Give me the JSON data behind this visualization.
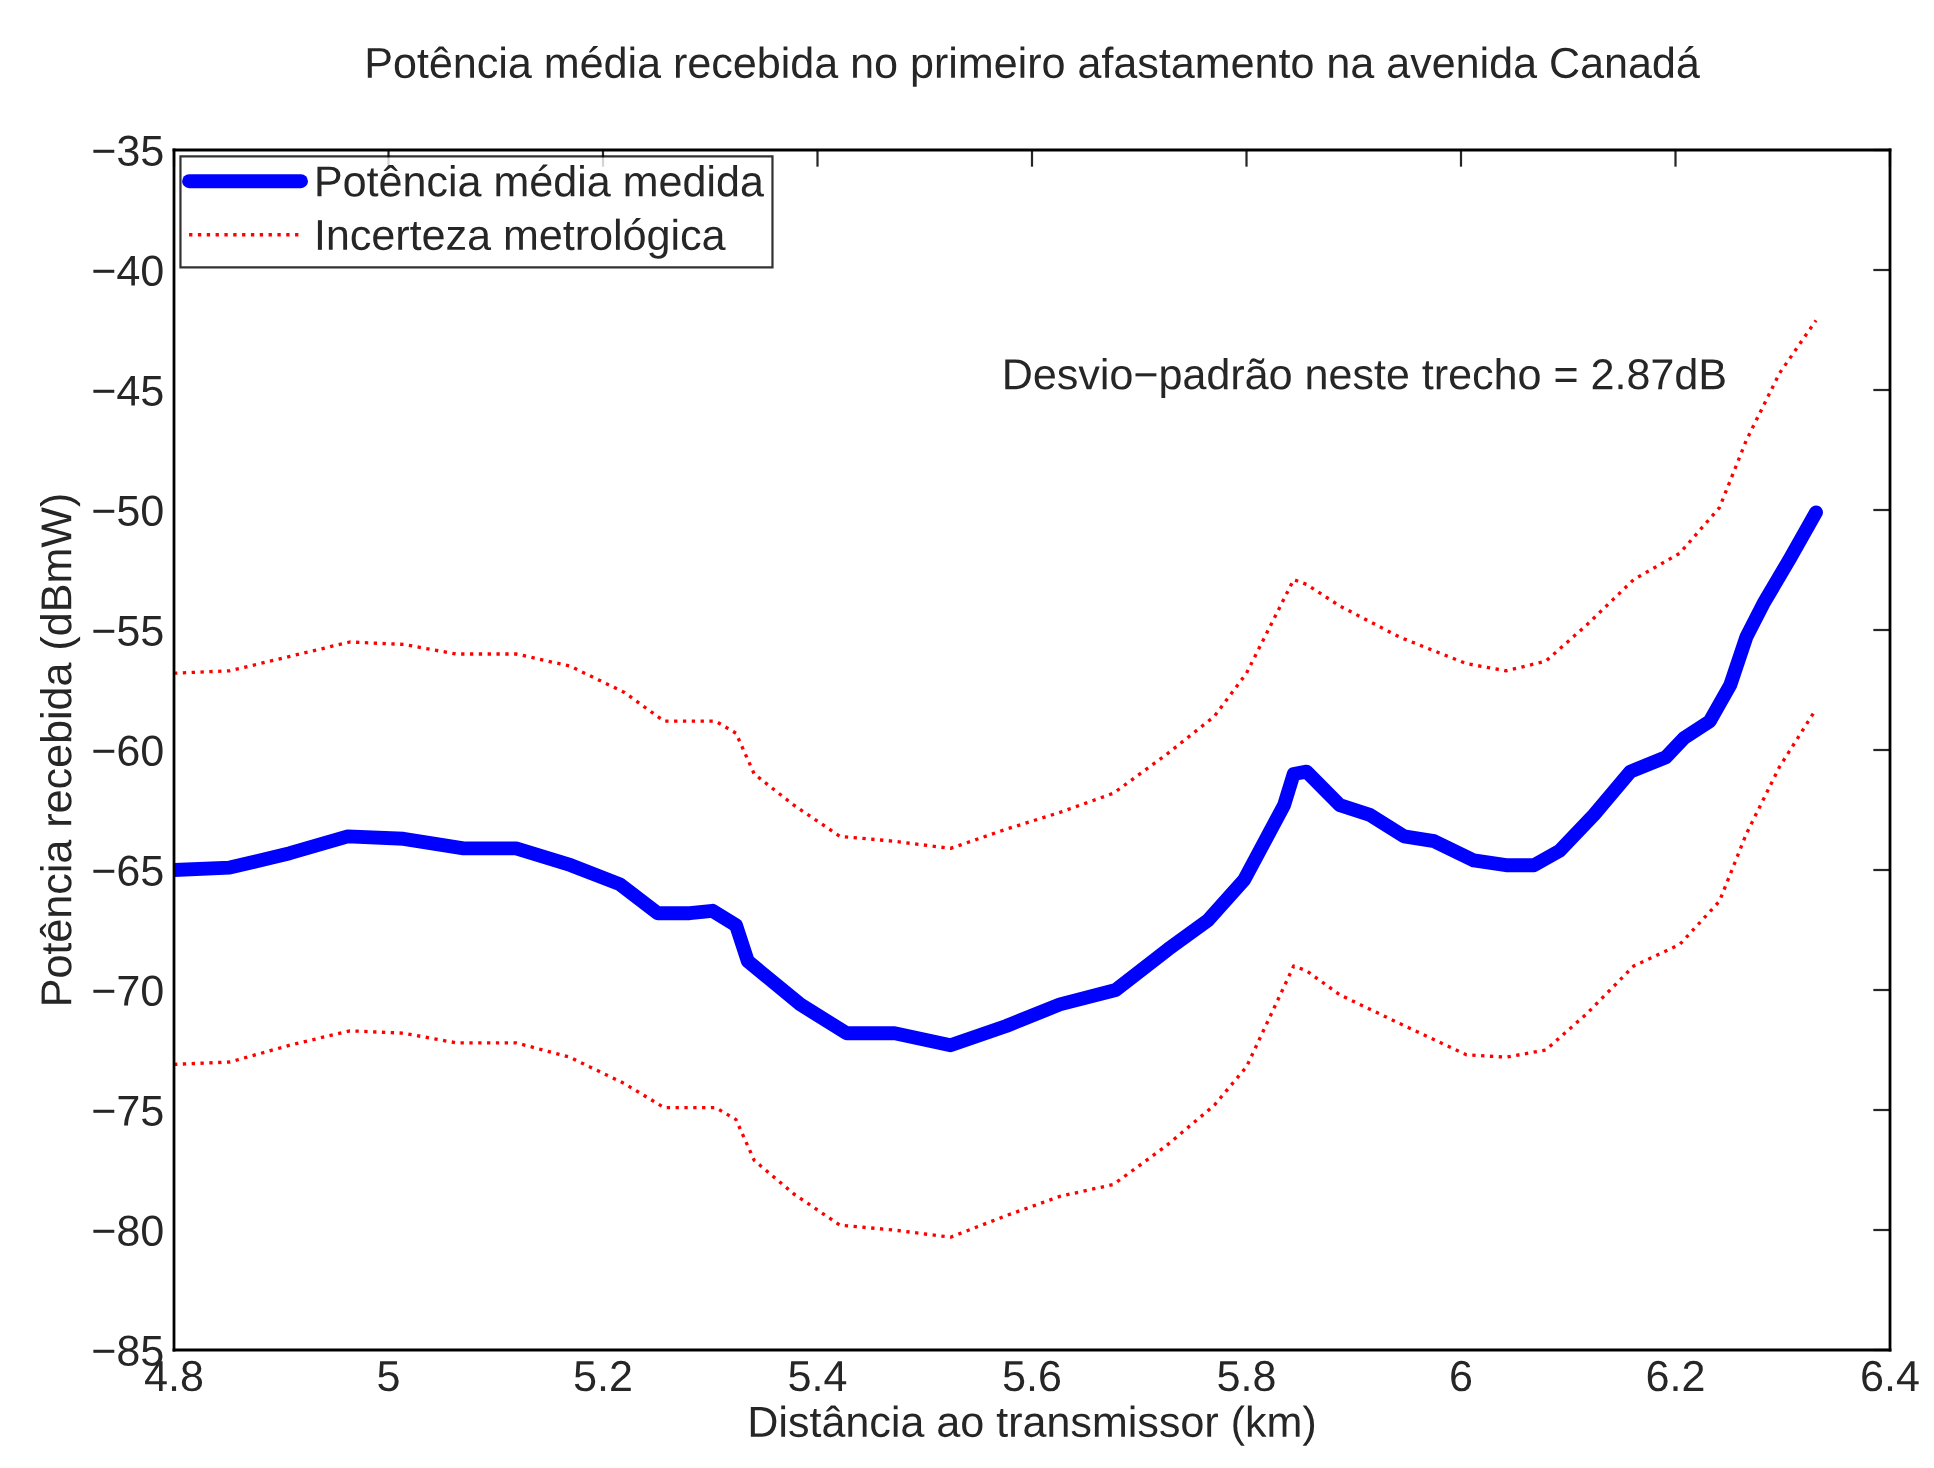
{
  "chart_data": {
    "type": "line",
    "title": "Potência média recebida no primeiro afastamento na avenida Canadá",
    "xlabel": "Distância ao transmissor (km)",
    "ylabel": "Potência recebida (dBmW)",
    "annotations": [
      "Desvio−padrão neste trecho = 2.87dB"
    ],
    "xlim": [
      4.8,
      6.4
    ],
    "xticks": [
      4.8,
      5,
      5.2,
      5.4,
      5.6,
      5.8,
      6,
      6.2,
      6.4
    ],
    "ylim": [
      -85,
      -35
    ],
    "yticks": [
      {
        "value": -85,
        "label": "−85"
      },
      {
        "value": -80,
        "label": "−80"
      },
      {
        "value": -75,
        "label": "−75"
      },
      {
        "value": -70,
        "label": "−70"
      },
      {
        "value": -65,
        "label": "−65"
      },
      {
        "value": -60,
        "label": "−60"
      },
      {
        "value": -55,
        "label": "−55"
      },
      {
        "value": -50,
        "label": "−50"
      },
      {
        "value": -45,
        "label": "−45"
      },
      {
        "value": -40,
        "label": "−40"
      },
      {
        "value": -35,
        "label": "−35"
      }
    ],
    "grid": false,
    "legend": "top left",
    "marker": "none",
    "series": [
      {
        "name": "Potência média medida",
        "color": "#0000ff",
        "line_style": "solid",
        "x": [
          4.8,
          4.852,
          4.908,
          4.962,
          5.014,
          5.07,
          5.119,
          5.17,
          5.216,
          5.251,
          5.281,
          5.302,
          5.324,
          5.335,
          5.384,
          5.427,
          5.472,
          5.524,
          5.576,
          5.626,
          5.678,
          5.727,
          5.764,
          5.798,
          5.835,
          5.844,
          5.856,
          5.887,
          5.915,
          5.947,
          5.975,
          6.012,
          6.042,
          6.068,
          6.092,
          6.124,
          6.158,
          6.191,
          6.208,
          6.232,
          6.251,
          6.266,
          6.282,
          6.307,
          6.331
        ],
        "values": [
          -65.0,
          -64.9,
          -64.3,
          -63.6,
          -63.7,
          -64.1,
          -64.1,
          -64.8,
          -65.6,
          -66.8,
          -66.8,
          -66.7,
          -67.3,
          -68.8,
          -70.6,
          -71.8,
          -71.8,
          -72.3,
          -71.5,
          -70.6,
          -70.0,
          -68.3,
          -67.1,
          -65.4,
          -62.3,
          -61.0,
          -60.9,
          -62.3,
          -62.7,
          -63.6,
          -63.8,
          -64.6,
          -64.8,
          -64.8,
          -64.2,
          -62.7,
          -60.9,
          -60.3,
          -59.5,
          -58.8,
          -57.3,
          -55.3,
          -53.9,
          -52.0,
          -50.1
        ]
      },
      {
        "name": "Incerteza metrológica",
        "color": "#ff0000",
        "line_style": "dotted",
        "x": [
          4.8,
          4.852,
          4.908,
          4.964,
          5.014,
          5.063,
          5.119,
          5.169,
          5.22,
          5.257,
          5.305,
          5.324,
          5.341,
          5.378,
          5.421,
          5.471,
          5.524,
          5.576,
          5.626,
          5.676,
          5.725,
          5.77,
          5.8,
          5.844,
          5.856,
          5.887,
          5.943,
          6.005,
          6.042,
          6.079,
          6.117,
          6.161,
          6.204,
          6.241,
          6.266,
          6.297,
          6.331
        ],
        "values": [
          -56.8,
          -56.7,
          -56.1,
          -55.5,
          -55.6,
          -56.0,
          -56.0,
          -56.5,
          -57.6,
          -58.8,
          -58.8,
          -59.3,
          -61.0,
          -62.3,
          -63.6,
          -63.8,
          -64.1,
          -63.3,
          -62.6,
          -61.8,
          -60.2,
          -58.6,
          -56.8,
          -52.9,
          -53.1,
          -54.0,
          -55.3,
          -56.4,
          -56.7,
          -56.3,
          -54.8,
          -52.9,
          -51.8,
          -49.9,
          -47.1,
          -44.3,
          -42.1
        ]
      },
      {
        "color": "#ff0000",
        "line_style": "dotted",
        "x": [
          4.8,
          4.852,
          4.908,
          4.964,
          5.014,
          5.063,
          5.119,
          5.169,
          5.22,
          5.257,
          5.305,
          5.324,
          5.341,
          5.378,
          5.421,
          5.471,
          5.524,
          5.576,
          5.626,
          5.676,
          5.725,
          5.77,
          5.8,
          5.844,
          5.856,
          5.887,
          5.943,
          6.005,
          6.042,
          6.079,
          6.117,
          6.161,
          6.204,
          6.241,
          6.266,
          6.297,
          6.331
        ],
        "values": [
          -73.1,
          -73.0,
          -72.3,
          -71.7,
          -71.8,
          -72.2,
          -72.2,
          -72.8,
          -73.9,
          -74.9,
          -74.9,
          -75.4,
          -77.1,
          -78.5,
          -79.8,
          -80.0,
          -80.3,
          -79.4,
          -78.6,
          -78.1,
          -76.5,
          -74.8,
          -73.2,
          -69.0,
          -69.2,
          -70.2,
          -71.4,
          -72.7,
          -72.8,
          -72.5,
          -71.0,
          -69.0,
          -68.1,
          -66.3,
          -63.5,
          -60.7,
          -58.3
        ]
      }
    ]
  }
}
